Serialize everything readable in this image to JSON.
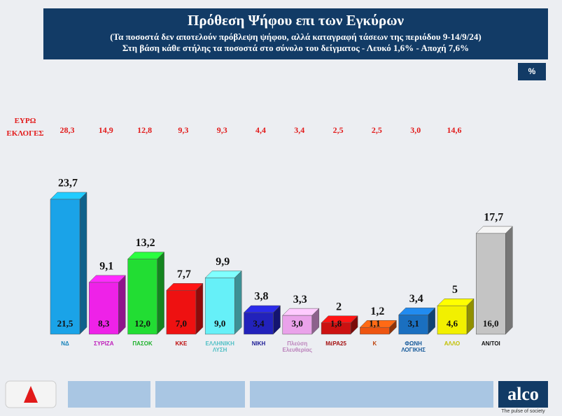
{
  "chart_data": {
    "type": "bar3d",
    "title": "Πρόθεση Ψήφου επι των Εγκύρων",
    "subtitle": "(Τα ποσοστά δεν αποτελούν πρόβλεψη ψήφου, αλλά καταγραφή τάσεων της περιόδου  9-14/9/24)",
    "note": "Στη βάση κάθε στήλης τα ποσοστά στο σύνολο του δείγματος - Λευκό 1,6% - Αποχή 7,6%",
    "unit": "%",
    "categories": [
      "ΝΔ",
      "ΣΥΡΙΖΑ",
      "ΠΑΣΟΚ",
      "ΚΚΕ",
      "ΕΛΛΗΝΙΚΗ ΛΥΣΗ",
      "ΝΙΚΗ",
      "Πλεύση Ελευθερίας",
      "ΜέΡΑ25",
      "Κ",
      "ΦΩΝΗ ΛΟΓΙΚΗΣ",
      "ΑΛΛΟ",
      "ΑΝ/ΤΟΙ"
    ],
    "colors": [
      "#1aa3e8",
      "#ee22e8",
      "#22dd33",
      "#ee1111",
      "#66f0f8",
      "#2222bb",
      "#eaa2ea",
      "#cc1111",
      "#ee5511",
      "#1a6fc0",
      "#f2f000",
      "#c4c4c4"
    ],
    "values": [
      23.7,
      9.1,
      13.2,
      7.7,
      9.9,
      3.8,
      3.3,
      2,
      1.2,
      3.4,
      5,
      17.7
    ],
    "value_labels": [
      "23,7",
      "9,1",
      "13,2",
      "7,7",
      "9,9",
      "3,8",
      "3,3",
      "2",
      "1,2",
      "3,4",
      "5",
      "17,7"
    ],
    "inner_values": [
      21.5,
      8.3,
      12.0,
      7.0,
      9.0,
      3.4,
      3.0,
      1.8,
      1.1,
      3.1,
      4.6,
      16.0
    ],
    "inner_value_labels": [
      "21,5",
      "8,3",
      "12,0",
      "7,0",
      "9,0",
      "3,4",
      "3,0",
      "1,8",
      "1,1",
      "3,1",
      "4,6",
      "16,0"
    ],
    "euro_name": "ΕΥΡΩ ΕΚΛΟΓΕΣ",
    "euro_values": [
      28.3,
      14.9,
      12.8,
      9.3,
      9.3,
      4.4,
      3.4,
      2.5,
      2.5,
      3.0,
      14.6
    ],
    "euro_value_labels": [
      "28,3",
      "14,9",
      "12,8",
      "9,3",
      "9,3",
      "4,4",
      "3,4",
      "2,5",
      "2,5",
      "3,0",
      "14,6"
    ]
  },
  "brand": {
    "name": "alco",
    "tagline": "The pulse of society"
  }
}
